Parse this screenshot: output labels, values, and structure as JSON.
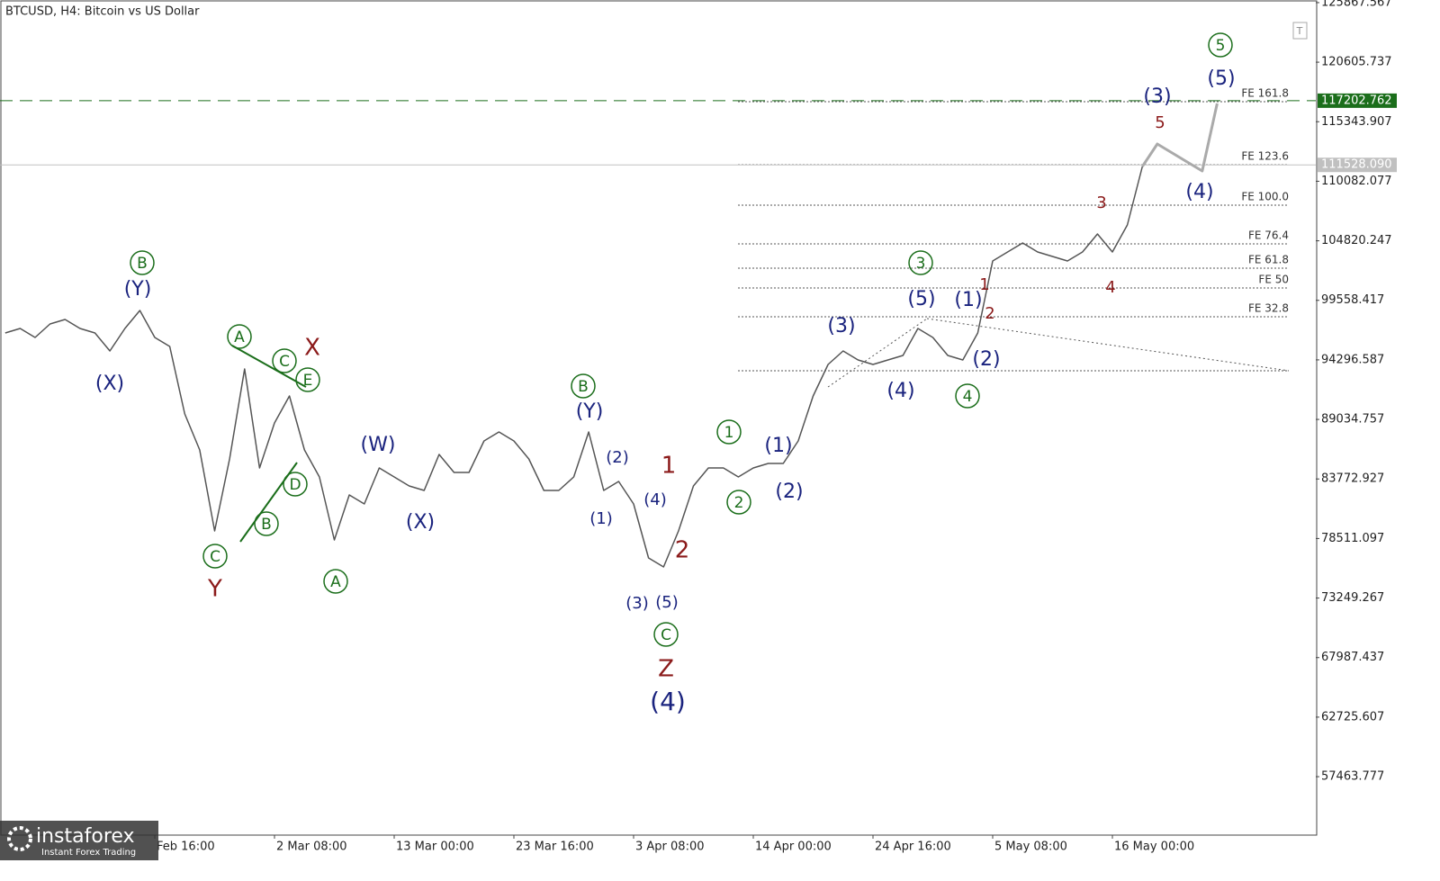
{
  "chart_data": {
    "type": "line",
    "title": "BTCUSD, H4:  Bitcoin vs US Dollar",
    "categories": [
      null,
      null,
      null,
      null,
      null,
      null,
      null,
      null,
      null,
      null,
      "Feb 16:00",
      null,
      null,
      null,
      null,
      null,
      null,
      null,
      "2 Mar 08:00",
      null,
      null,
      null,
      null,
      null,
      null,
      null,
      "13 Mar 00:00",
      null,
      null,
      null,
      null,
      null,
      null,
      null,
      "23 Mar 16:00",
      null,
      null,
      null,
      null,
      null,
      null,
      null,
      "3 Apr 08:00",
      null,
      null,
      null,
      null,
      null,
      null,
      null,
      "14 Apr 00:00",
      null,
      null,
      null,
      null,
      null,
      null,
      null,
      "24 Apr 16:00",
      null,
      null,
      null,
      null,
      null,
      null,
      null,
      "5 May 08:00",
      null,
      null,
      null,
      null,
      null,
      null,
      null,
      "16 May 00:00",
      null,
      null,
      null,
      null,
      null,
      null,
      null
    ],
    "series": [
      {
        "color": "#555555",
        "values": [
          96674,
          97071,
          96276,
          97469,
          97867,
          97071,
          96674,
          95083,
          97071,
          98662,
          96276,
          95481,
          89516,
          86335,
          79177,
          85540,
          93493,
          84744,
          88721,
          91107,
          86335,
          83949,
          78382,
          82359,
          81563,
          84744,
          83949,
          83154,
          82756,
          85938,
          84347,
          84347,
          87130,
          87926,
          87130,
          85540,
          82756,
          82756,
          83949,
          87926,
          82756,
          83551,
          81563,
          76791,
          75996,
          79177,
          83154,
          84744,
          84744,
          83949,
          84744,
          85142,
          85142,
          87130,
          91107,
          93890,
          95083,
          94288,
          93890,
          94288,
          94686,
          97071,
          96276,
          94686,
          94288,
          96674,
          103036,
          103832,
          104627,
          103832,
          103434,
          103036,
          103832,
          105422,
          103832,
          106218,
          111387,
          null,
          null,
          null,
          null,
          null
        ]
      },
      {
        "color": "#aaaaaa",
        "values": [
          null,
          null,
          null,
          null,
          null,
          null,
          null,
          null,
          null,
          null,
          null,
          null,
          null,
          null,
          null,
          null,
          null,
          null,
          null,
          null,
          null,
          null,
          null,
          null,
          null,
          null,
          null,
          null,
          null,
          null,
          null,
          null,
          null,
          null,
          null,
          null,
          null,
          null,
          null,
          null,
          null,
          null,
          null,
          null,
          null,
          null,
          null,
          null,
          null,
          null,
          null,
          null,
          null,
          null,
          null,
          null,
          null,
          null,
          null,
          null,
          null,
          null,
          null,
          null,
          null,
          null,
          null,
          null,
          null,
          null,
          null,
          null,
          null,
          null,
          null,
          null,
          111387,
          113375,
          112580,
          111784,
          110989,
          116954
        ]
      }
    ],
    "ylim": [
      52300,
      126100
    ],
    "yticks": [
      125867.567,
      120605.737,
      115343.907,
      110082.077,
      104820.247,
      99558.417,
      94296.587,
      89034.757,
      83772.927,
      78511.097,
      73249.267,
      67987.437,
      62725.607,
      57463.777
    ],
    "price_lines": [
      {
        "value": 117202.762,
        "label": "117202.762",
        "color": "#1b6e1b"
      },
      {
        "value": 111528.09,
        "label": "111528.090",
        "color": "#c0c0c0"
      }
    ],
    "fib_levels": [
      {
        "label": "FE 161.8",
        "value": 117113
      },
      {
        "label": "FE 123.6",
        "value": 111546
      },
      {
        "label": "FE 100.0",
        "value": 107967
      },
      {
        "label": "FE 76.4",
        "value": 104548
      },
      {
        "label": "FE 61.8",
        "value": 102400
      },
      {
        "label": "FE 50",
        "value": 100650
      },
      {
        "label": "FE 32.8",
        "value": 98105
      }
    ],
    "fib_base": 93334,
    "annotations": [
      "B",
      "(Y)",
      "(X)",
      "A",
      "C",
      "E",
      "X",
      "D",
      "B",
      "C",
      "Y",
      "A",
      "(W)",
      "(X)",
      "B",
      "(Y)",
      "(2)",
      "(1)",
      "(4)",
      "1",
      "2",
      "(3)",
      "(5)",
      "C",
      "Z",
      "(4)",
      "1",
      "2",
      "(1)",
      "(2)",
      "(3)",
      "(4)",
      "(5)",
      "3",
      "(1)",
      "1",
      "2",
      "(2)",
      "4",
      "3",
      "4",
      "(3)",
      "5",
      "(4)",
      "(5)",
      "5"
    ],
    "watermark": {
      "name": "instaforex",
      "tagline": "Instant Forex Trading"
    }
  }
}
